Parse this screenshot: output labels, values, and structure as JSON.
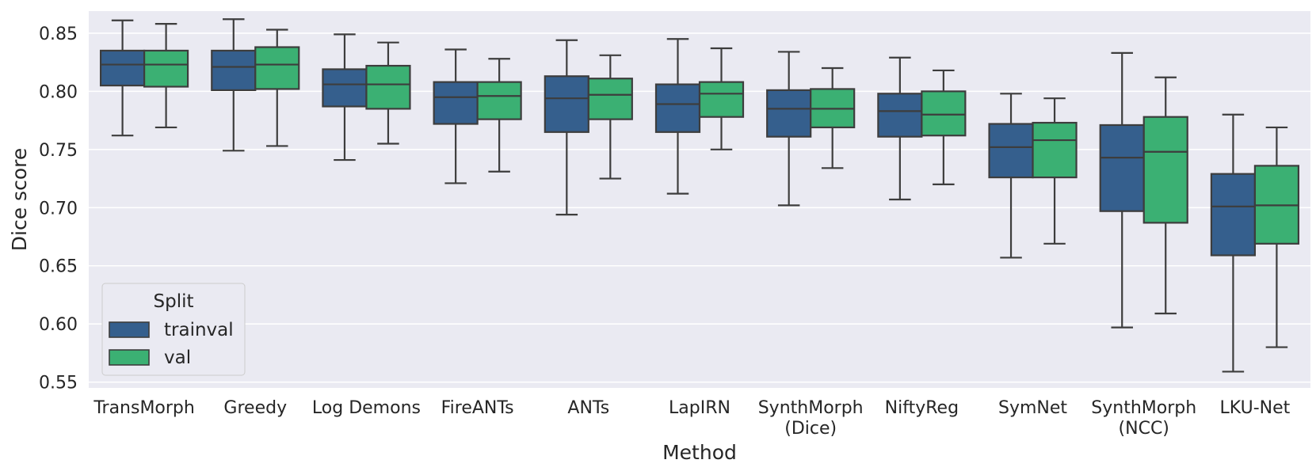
{
  "chart_data": {
    "type": "boxplot",
    "title": "",
    "xlabel": "Method",
    "ylabel": "Dice score",
    "ylim": [
      0.545,
      0.869
    ],
    "yticks": [
      "0.55",
      "0.60",
      "0.65",
      "0.70",
      "0.75",
      "0.80",
      "0.85"
    ],
    "grid": true,
    "legend": {
      "title": "Split",
      "placement": "lower-left"
    },
    "categories": [
      [
        "TransMorph"
      ],
      [
        "Greedy"
      ],
      [
        "Log Demons"
      ],
      [
        "FireANTs"
      ],
      [
        "ANTs"
      ],
      [
        "LapIRN"
      ],
      [
        "SynthMorph",
        "(Dice)"
      ],
      [
        "NiftyReg"
      ],
      [
        "SymNet"
      ],
      [
        "SynthMorph",
        "(NCC)"
      ],
      [
        "LKU-Net"
      ]
    ],
    "series": [
      {
        "name": "trainval",
        "color": "#355f8d",
        "boxes": [
          {
            "whislo": 0.762,
            "q1": 0.805,
            "med": 0.823,
            "q3": 0.835,
            "whishi": 0.861
          },
          {
            "whislo": 0.749,
            "q1": 0.801,
            "med": 0.821,
            "q3": 0.835,
            "whishi": 0.862
          },
          {
            "whislo": 0.741,
            "q1": 0.787,
            "med": 0.806,
            "q3": 0.819,
            "whishi": 0.849
          },
          {
            "whislo": 0.721,
            "q1": 0.772,
            "med": 0.795,
            "q3": 0.808,
            "whishi": 0.836
          },
          {
            "whislo": 0.694,
            "q1": 0.765,
            "med": 0.794,
            "q3": 0.813,
            "whishi": 0.844
          },
          {
            "whislo": 0.712,
            "q1": 0.765,
            "med": 0.789,
            "q3": 0.806,
            "whishi": 0.845
          },
          {
            "whislo": 0.702,
            "q1": 0.761,
            "med": 0.785,
            "q3": 0.801,
            "whishi": 0.834
          },
          {
            "whislo": 0.707,
            "q1": 0.761,
            "med": 0.783,
            "q3": 0.798,
            "whishi": 0.829
          },
          {
            "whislo": 0.657,
            "q1": 0.726,
            "med": 0.752,
            "q3": 0.772,
            "whishi": 0.798
          },
          {
            "whislo": 0.597,
            "q1": 0.697,
            "med": 0.743,
            "q3": 0.771,
            "whishi": 0.833
          },
          {
            "whislo": 0.559,
            "q1": 0.659,
            "med": 0.701,
            "q3": 0.729,
            "whishi": 0.78
          }
        ]
      },
      {
        "name": "val",
        "color": "#3bb073",
        "boxes": [
          {
            "whislo": 0.769,
            "q1": 0.804,
            "med": 0.823,
            "q3": 0.835,
            "whishi": 0.858
          },
          {
            "whislo": 0.753,
            "q1": 0.802,
            "med": 0.823,
            "q3": 0.838,
            "whishi": 0.853
          },
          {
            "whislo": 0.755,
            "q1": 0.785,
            "med": 0.806,
            "q3": 0.822,
            "whishi": 0.842
          },
          {
            "whislo": 0.731,
            "q1": 0.776,
            "med": 0.796,
            "q3": 0.808,
            "whishi": 0.828
          },
          {
            "whislo": 0.725,
            "q1": 0.776,
            "med": 0.797,
            "q3": 0.811,
            "whishi": 0.831
          },
          {
            "whislo": 0.75,
            "q1": 0.778,
            "med": 0.798,
            "q3": 0.808,
            "whishi": 0.837
          },
          {
            "whislo": 0.734,
            "q1": 0.769,
            "med": 0.785,
            "q3": 0.802,
            "whishi": 0.82
          },
          {
            "whislo": 0.72,
            "q1": 0.762,
            "med": 0.78,
            "q3": 0.8,
            "whishi": 0.818
          },
          {
            "whislo": 0.669,
            "q1": 0.726,
            "med": 0.758,
            "q3": 0.773,
            "whishi": 0.794
          },
          {
            "whislo": 0.609,
            "q1": 0.687,
            "med": 0.748,
            "q3": 0.778,
            "whishi": 0.812
          },
          {
            "whislo": 0.58,
            "q1": 0.669,
            "med": 0.702,
            "q3": 0.736,
            "whishi": 0.769
          }
        ]
      }
    ]
  }
}
